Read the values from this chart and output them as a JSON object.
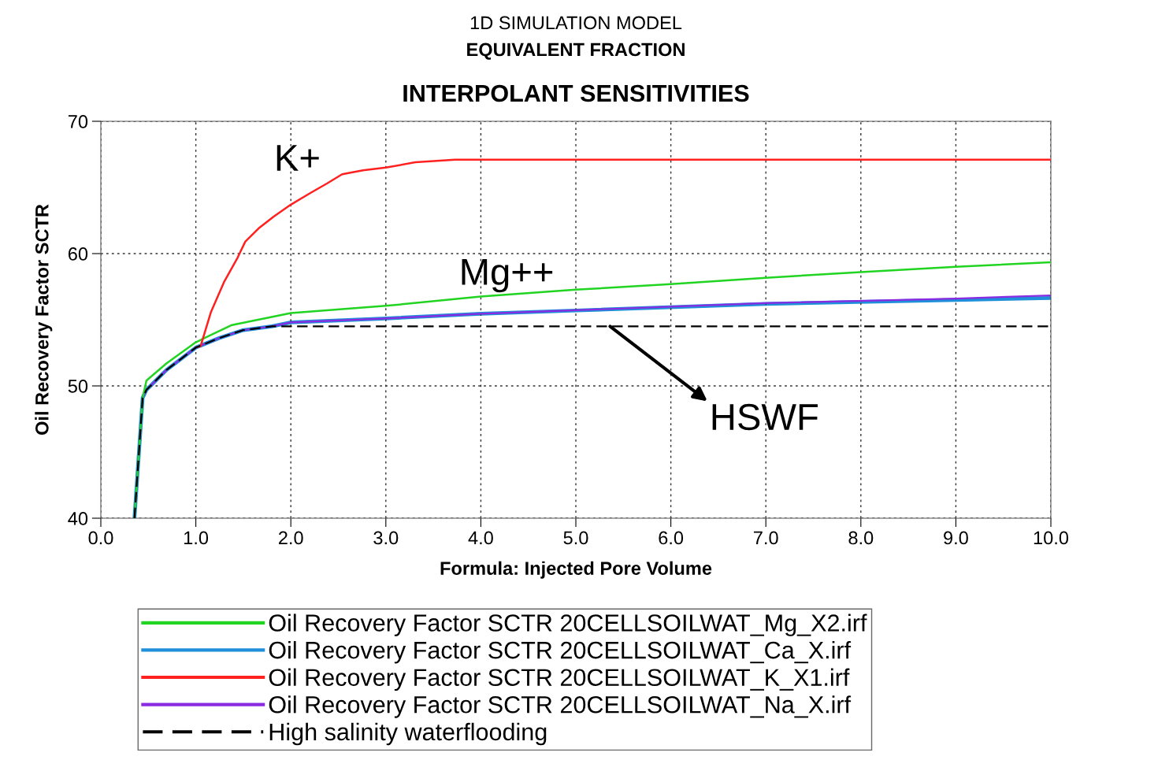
{
  "chart_data": {
    "type": "line",
    "title": "INTERPOLANT SENSITIVITIES",
    "subtitle": "1D SIMULATION MODEL\nEQUIVALENT FRACTION",
    "xlabel": "Formula: Injected Pore Volume",
    "ylabel": "Oil Recovery Factor SCTR",
    "xlim": [
      0,
      10
    ],
    "ylim": [
      40,
      70
    ],
    "xticks": [
      {
        "value": 0,
        "label": "0.0"
      },
      {
        "value": 1,
        "label": "1.0"
      },
      {
        "value": 2,
        "label": "2.0"
      },
      {
        "value": 3,
        "label": "3.0"
      },
      {
        "value": 4,
        "label": "4.0"
      },
      {
        "value": 5,
        "label": "5.0"
      },
      {
        "value": 6,
        "label": "6.0"
      },
      {
        "value": 7,
        "label": "7.0"
      },
      {
        "value": 8,
        "label": "8.0"
      },
      {
        "value": 9,
        "label": "9.0"
      },
      {
        "value": 10,
        "label": "10.0"
      }
    ],
    "yticks": [
      40,
      50,
      60,
      70
    ],
    "grid": true,
    "legend": "bottom",
    "marker": "none",
    "series": [
      {
        "name": "Oil Recovery Factor SCTR 20CELLSOILWAT_Mg_X2.irf",
        "color": "#22d422",
        "line_style": "solid",
        "x": [
          0.354,
          0.44,
          0.48,
          0.69,
          1.0,
          1.38,
          2.0,
          3.0,
          4.0,
          5.0,
          6.0,
          7.0,
          8.0,
          9.0,
          10.0
        ],
        "values": [
          40,
          49.1,
          50.4,
          51.7,
          53.3,
          54.6,
          55.5,
          56.05,
          56.75,
          57.27,
          57.7,
          58.17,
          58.6,
          59.0,
          59.35
        ]
      },
      {
        "name": "Oil Recovery Factor SCTR 20CELLSOILWAT_Ca_X.irf",
        "color": "#1e8fd8",
        "line_style": "solid",
        "x": [
          0.354,
          0.44,
          0.48,
          0.69,
          1.0,
          1.24,
          1.49,
          1.8,
          2.0,
          3.0,
          4.0,
          5.0,
          7.0,
          9.0,
          10.0
        ],
        "values": [
          40,
          49.1,
          49.7,
          51.2,
          52.9,
          53.6,
          54.2,
          54.5,
          54.8,
          55.1,
          55.45,
          55.7,
          56.2,
          56.5,
          56.65
        ]
      },
      {
        "name": "Oil Recovery Factor SCTR 20CELLSOILWAT_K_X1.irf",
        "color": "#ff2020",
        "line_style": "solid",
        "x": [
          1.0,
          1.05,
          1.16,
          1.3,
          1.44,
          1.52,
          1.66,
          1.82,
          2.0,
          2.21,
          2.38,
          2.54,
          2.76,
          3.0,
          3.31,
          3.73,
          10.0
        ],
        "values": [
          52.9,
          53.0,
          55.6,
          57.9,
          59.7,
          60.9,
          61.9,
          62.8,
          63.7,
          64.6,
          65.3,
          66.0,
          66.3,
          66.5,
          66.9,
          67.1,
          67.1
        ]
      },
      {
        "name": "Oil Recovery Factor SCTR 20CELLSOILWAT_Na_X.irf",
        "color": "#8a2be2",
        "line_style": "solid",
        "x": [
          0.354,
          0.44,
          0.48,
          0.69,
          1.0,
          1.24,
          1.49,
          1.8,
          2.0,
          3.0,
          4.0,
          5.0,
          7.0,
          9.0,
          10.0
        ],
        "values": [
          40,
          49.1,
          49.7,
          51.2,
          52.9,
          53.6,
          54.2,
          54.5,
          54.8,
          55.1,
          55.45,
          55.72,
          56.26,
          56.6,
          56.84
        ]
      },
      {
        "name": "High salinity waterflooding",
        "color": "#000000",
        "line_style": "dashed",
        "x": [
          0.354,
          0.44,
          0.48,
          0.69,
          1.0,
          1.24,
          1.49,
          1.8,
          2.0,
          10.0
        ],
        "values": [
          40,
          49.1,
          49.7,
          51.2,
          52.9,
          53.6,
          54.2,
          54.5,
          54.5,
          54.5
        ]
      }
    ],
    "annotations": [
      {
        "text": "K+",
        "x": 2.1,
        "y": 64.2
      },
      {
        "text": "Mg++",
        "x": 4.3,
        "y": 56.9
      },
      {
        "text": "HSWF",
        "x": 5.36,
        "y": 54.5
      }
    ]
  }
}
